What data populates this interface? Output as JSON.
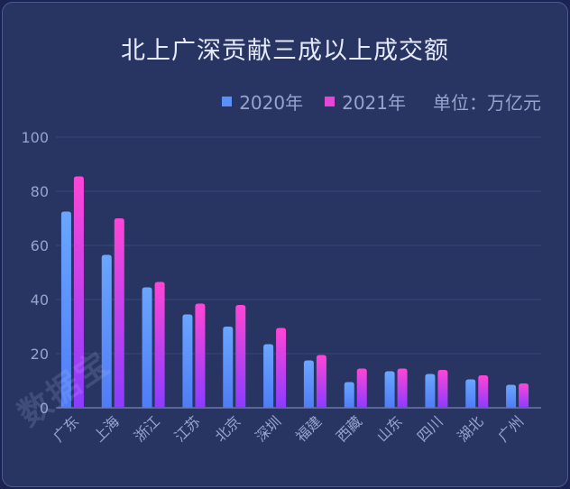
{
  "chart_data": {
    "type": "bar",
    "title": "北上广深贡献三成以上成交额",
    "unit": "单位：万亿元",
    "categories": [
      "广东",
      "上海",
      "浙江",
      "江苏",
      "北京",
      "深圳",
      "福建",
      "西藏",
      "山东",
      "四川",
      "湖北",
      "广州"
    ],
    "series": [
      {
        "name": "2020年",
        "values": [
          72.5,
          56.5,
          44.5,
          34.5,
          30,
          23.5,
          17.5,
          9.5,
          13.5,
          12.5,
          10.5,
          8.5
        ]
      },
      {
        "name": "2021年",
        "values": [
          85.5,
          70,
          46.5,
          38.5,
          38,
          29.5,
          19.5,
          14.5,
          14.5,
          14,
          12,
          9
        ]
      }
    ],
    "ylim": [
      0,
      100
    ],
    "yticks": [
      0,
      20,
      40,
      60,
      80,
      100
    ],
    "grid": true,
    "legend_position": "top-right",
    "colors": {
      "s2020_top": "#6aa6ff",
      "s2020_bottom": "#4f7cf6",
      "s2021_top": "#ff45d6",
      "s2021_bottom": "#8a3cff",
      "background": "#283563"
    }
  },
  "watermark": "数据宝"
}
